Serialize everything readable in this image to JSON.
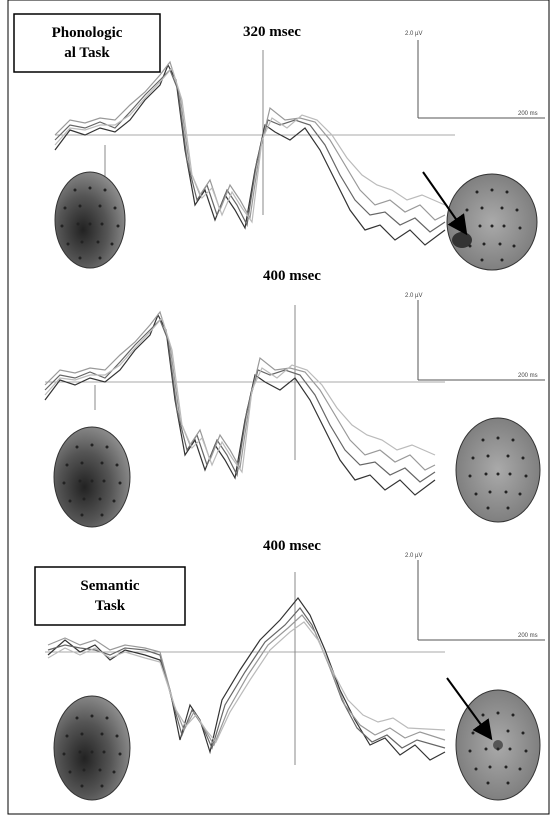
{
  "panels": [
    {
      "task_label": [
        "Phonologic",
        "al Task"
      ],
      "latency": "320 msec",
      "scale": {
        "amplitude": "2.0 µV",
        "time": "200 ms"
      }
    },
    {
      "latency": "400 msec",
      "scale": {
        "amplitude": "2.0 µV",
        "time": "200 ms"
      }
    },
    {
      "task_label": [
        "Semantic",
        "Task"
      ],
      "latency": "400 msec",
      "scale": {
        "amplitude": "2.0 µV",
        "time": "200 ms"
      }
    }
  ]
}
